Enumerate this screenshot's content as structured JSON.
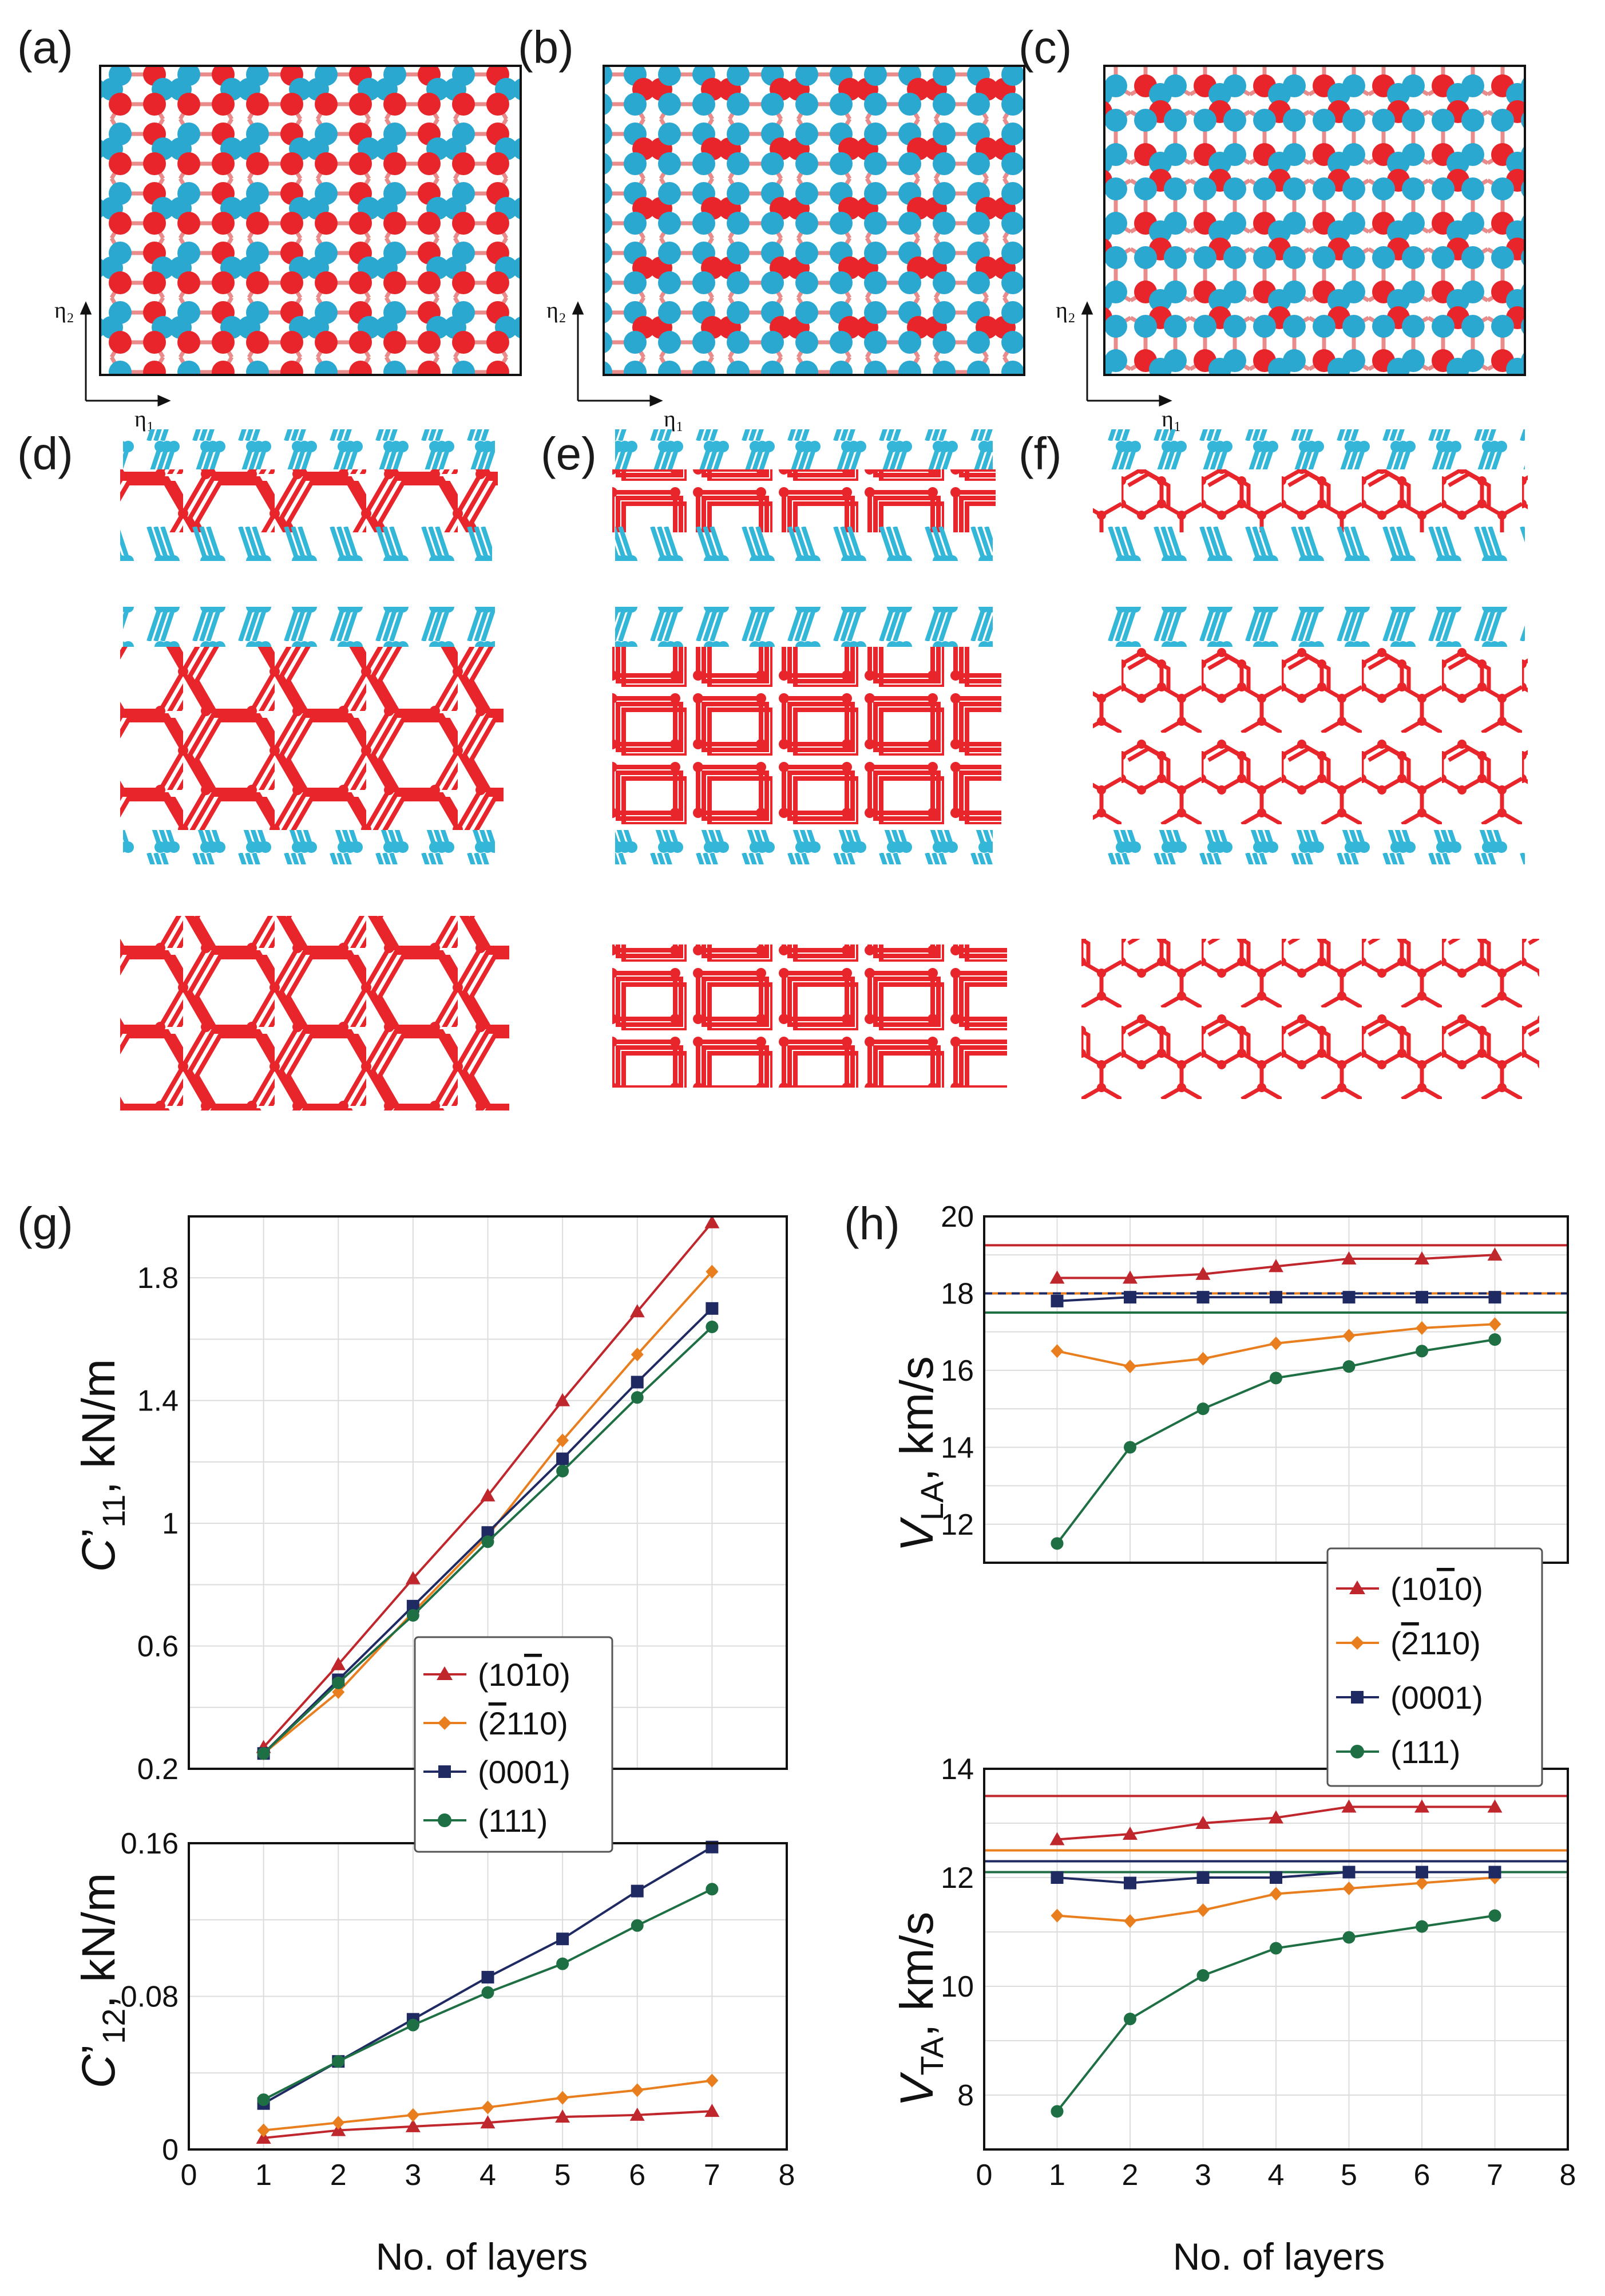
{
  "figure": {
    "panel_labels": [
      "(a)",
      "(b)",
      "(c)",
      "(d)",
      "(e)",
      "(f)",
      "(g)",
      "(h)"
    ],
    "lattice_axes": {
      "eta1": "η₁",
      "eta2": "η₂"
    },
    "colors": {
      "atom_red": "#e8252a",
      "atom_cyan": "#2aa8d0",
      "bond": "#e8252a",
      "cap": "#33b6d8"
    }
  },
  "legend": {
    "entries": [
      {
        "main": "(10",
        "bar": "1",
        "tail": "0)",
        "color": "#c0272d",
        "marker": "triangle"
      },
      {
        "pre": "(",
        "bar": "2",
        "tail": "110)",
        "color": "#e87e1e",
        "marker": "diamond"
      },
      {
        "main": "(0001)",
        "color": "#1f2a63",
        "marker": "square"
      },
      {
        "main": "(111)",
        "color": "#1f6f44",
        "marker": "circle"
      }
    ]
  },
  "chart_data": [
    {
      "id": "g-top",
      "type": "line",
      "panel": "(g)",
      "ylabel": "C’11, kN/m",
      "xlabel": "",
      "xlim": [
        0,
        8
      ],
      "ylim": [
        0.2,
        2.0
      ],
      "yticks": [
        0.2,
        0.6,
        1.0,
        1.4,
        1.8
      ],
      "x": [
        1,
        2,
        3,
        4,
        5,
        6,
        7
      ],
      "series": [
        {
          "name": "(10-10)",
          "color": "#c0272d",
          "marker": "triangle",
          "values": [
            0.27,
            0.54,
            0.82,
            1.09,
            1.4,
            1.69,
            1.98
          ]
        },
        {
          "name": "(-2110)",
          "color": "#e87e1e",
          "marker": "diamond",
          "values": [
            0.25,
            0.45,
            0.71,
            0.96,
            1.27,
            1.55,
            1.82
          ]
        },
        {
          "name": "(0001)",
          "color": "#1f2a63",
          "marker": "square",
          "values": [
            0.25,
            0.49,
            0.73,
            0.97,
            1.21,
            1.46,
            1.7
          ]
        },
        {
          "name": "(111)",
          "color": "#1f6f44",
          "marker": "circle",
          "values": [
            0.25,
            0.48,
            0.7,
            0.94,
            1.17,
            1.41,
            1.64
          ]
        }
      ]
    },
    {
      "id": "g-bot",
      "type": "line",
      "panel": "(g)",
      "ylabel": "C’12, kN/m",
      "xlabel": "No. of layers",
      "xlim": [
        0,
        8
      ],
      "ylim": [
        0,
        0.16
      ],
      "yticks": [
        0,
        0.08,
        0.16
      ],
      "xticks": [
        0,
        1,
        2,
        3,
        4,
        5,
        6,
        7,
        8
      ],
      "x": [
        1,
        2,
        3,
        4,
        5,
        6,
        7
      ],
      "series": [
        {
          "name": "(10-10)",
          "color": "#c0272d",
          "marker": "triangle",
          "values": [
            0.006,
            0.01,
            0.012,
            0.014,
            0.017,
            0.018,
            0.02
          ]
        },
        {
          "name": "(-2110)",
          "color": "#e87e1e",
          "marker": "diamond",
          "values": [
            0.01,
            0.014,
            0.018,
            0.022,
            0.027,
            0.031,
            0.036
          ]
        },
        {
          "name": "(0001)",
          "color": "#1f2a63",
          "marker": "square",
          "values": [
            0.024,
            0.046,
            0.068,
            0.09,
            0.11,
            0.135,
            0.158
          ]
        },
        {
          "name": "(111)",
          "color": "#1f6f44",
          "marker": "circle",
          "values": [
            0.026,
            0.046,
            0.065,
            0.082,
            0.097,
            0.117,
            0.136
          ]
        }
      ]
    },
    {
      "id": "h-top",
      "type": "line",
      "panel": "(h)",
      "ylabel": "VLA, km/s",
      "xlabel": "",
      "xlim": [
        0,
        8
      ],
      "ylim": [
        11,
        20
      ],
      "yticks": [
        12,
        14,
        16,
        18,
        20
      ],
      "x": [
        1,
        2,
        3,
        4,
        5,
        6,
        7
      ],
      "reference_lines": [
        {
          "value": 19.25,
          "color": "#c0272d",
          "style": "solid"
        },
        {
          "value": 18.0,
          "color": "#e87e1e",
          "style": "solid"
        },
        {
          "value": 18.0,
          "color": "#1f2a63",
          "style": "dashed"
        },
        {
          "value": 17.5,
          "color": "#1f6f44",
          "style": "solid"
        }
      ],
      "series": [
        {
          "name": "(10-10)",
          "color": "#c0272d",
          "marker": "triangle",
          "values": [
            18.4,
            18.4,
            18.5,
            18.7,
            18.9,
            18.9,
            19.0
          ]
        },
        {
          "name": "(-2110)",
          "color": "#e87e1e",
          "marker": "diamond",
          "values": [
            16.5,
            16.1,
            16.3,
            16.7,
            16.9,
            17.1,
            17.2
          ]
        },
        {
          "name": "(0001)",
          "color": "#1f2a63",
          "marker": "square",
          "values": [
            17.8,
            17.9,
            17.9,
            17.9,
            17.9,
            17.9,
            17.9
          ]
        },
        {
          "name": "(111)",
          "color": "#1f6f44",
          "marker": "circle",
          "values": [
            11.5,
            14.0,
            15.0,
            15.8,
            16.1,
            16.5,
            16.8
          ]
        }
      ]
    },
    {
      "id": "h-bot",
      "type": "line",
      "panel": "(h)",
      "ylabel": "VTA, km/s",
      "xlabel": "No. of layers",
      "xlim": [
        0,
        8
      ],
      "ylim": [
        7,
        14
      ],
      "yticks": [
        8,
        10,
        12,
        14
      ],
      "xticks": [
        0,
        1,
        2,
        3,
        4,
        5,
        6,
        7,
        8
      ],
      "x": [
        1,
        2,
        3,
        4,
        5,
        6,
        7
      ],
      "reference_lines": [
        {
          "value": 13.5,
          "color": "#c0272d",
          "style": "solid"
        },
        {
          "value": 12.5,
          "color": "#e87e1e",
          "style": "solid"
        },
        {
          "value": 12.3,
          "color": "#1f2a63",
          "style": "solid"
        },
        {
          "value": 12.1,
          "color": "#1f6f44",
          "style": "solid"
        }
      ],
      "series": [
        {
          "name": "(10-10)",
          "color": "#c0272d",
          "marker": "triangle",
          "values": [
            12.7,
            12.8,
            13.0,
            13.1,
            13.3,
            13.3,
            13.3
          ]
        },
        {
          "name": "(-2110)",
          "color": "#e87e1e",
          "marker": "diamond",
          "values": [
            11.3,
            11.2,
            11.4,
            11.7,
            11.8,
            11.9,
            12.0
          ]
        },
        {
          "name": "(0001)",
          "color": "#1f2a63",
          "marker": "square",
          "values": [
            12.0,
            11.9,
            12.0,
            12.0,
            12.1,
            12.1,
            12.1
          ]
        },
        {
          "name": "(111)",
          "color": "#1f6f44",
          "marker": "circle",
          "values": [
            7.7,
            9.4,
            10.2,
            10.7,
            10.9,
            11.1,
            11.3
          ]
        }
      ]
    }
  ]
}
